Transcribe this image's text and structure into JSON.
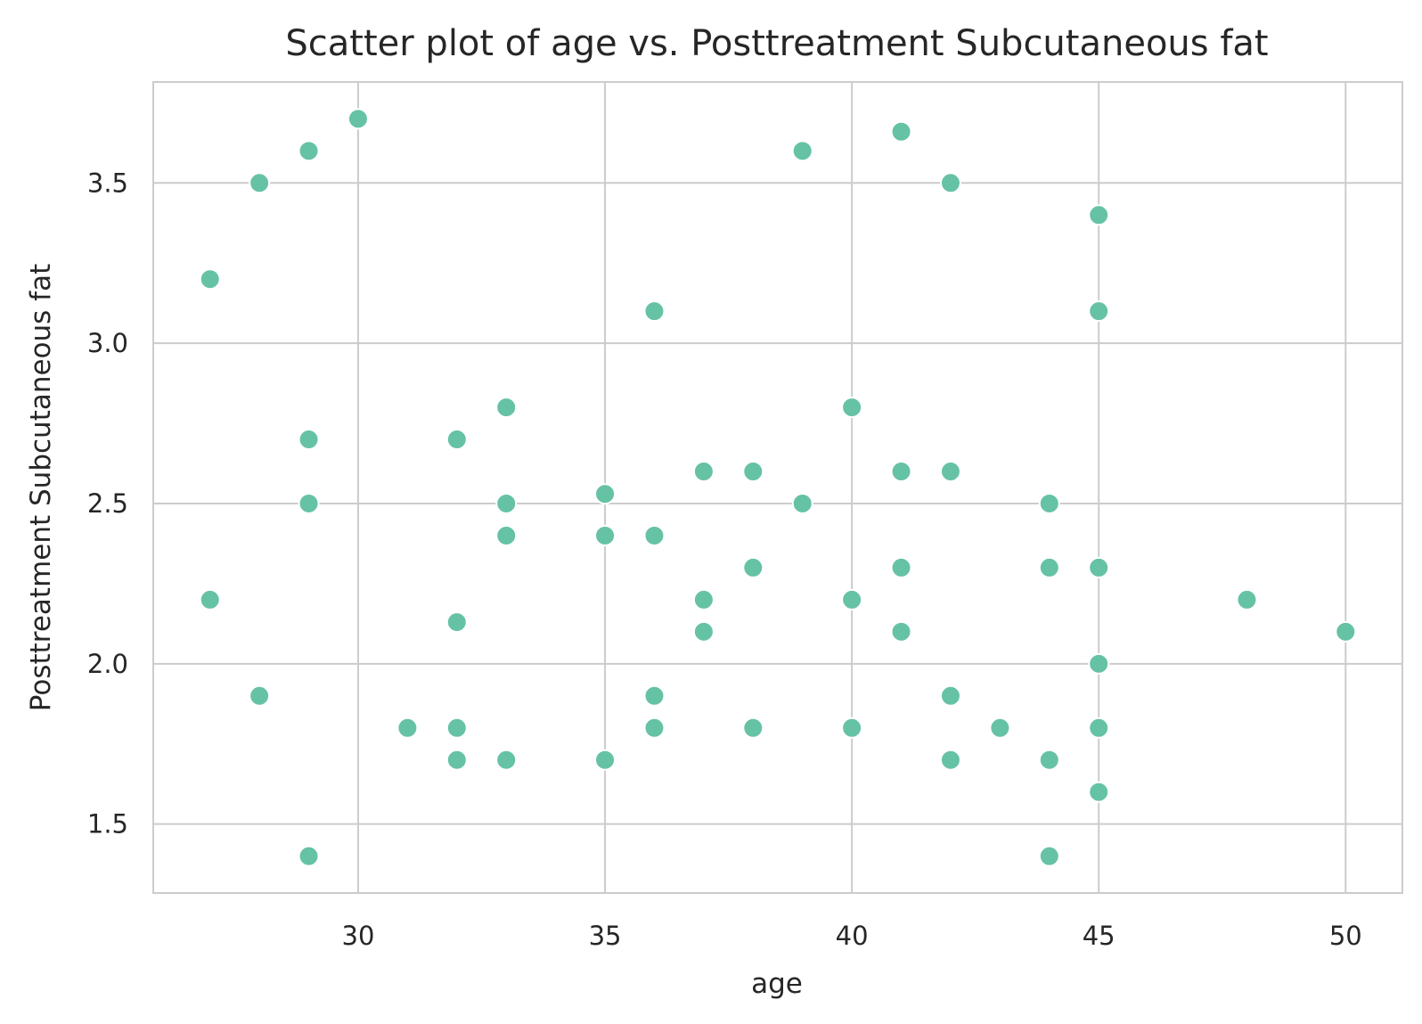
{
  "colors": {
    "point": "#66c2a5",
    "grid": "#cccccc",
    "text": "#262626"
  },
  "chart_data": {
    "type": "scatter",
    "title": "Scatter plot of age vs. Posttreatment Subcutaneous fat",
    "xlabel": "age",
    "ylabel": "Posttreatment Subcutaneous fat",
    "xlim": [
      25.85,
      51.15
    ],
    "ylim": [
      1.285,
      3.815
    ],
    "xticks": [
      30,
      35,
      40,
      45,
      50
    ],
    "xtick_labels": [
      "30",
      "35",
      "40",
      "45",
      "50"
    ],
    "yticks": [
      1.5,
      2.0,
      2.5,
      3.0,
      3.5
    ],
    "ytick_labels": [
      "1.5",
      "2.0",
      "2.5",
      "3.0",
      "3.5"
    ],
    "grid": true,
    "points": [
      {
        "x": 27,
        "y": 3.2
      },
      {
        "x": 27,
        "y": 2.2
      },
      {
        "x": 28,
        "y": 3.5
      },
      {
        "x": 28,
        "y": 1.9
      },
      {
        "x": 29,
        "y": 3.6
      },
      {
        "x": 29,
        "y": 2.7
      },
      {
        "x": 29,
        "y": 2.5
      },
      {
        "x": 29,
        "y": 1.4
      },
      {
        "x": 30,
        "y": 3.7
      },
      {
        "x": 31,
        "y": 1.8
      },
      {
        "x": 32,
        "y": 2.7
      },
      {
        "x": 32,
        "y": 2.13
      },
      {
        "x": 32,
        "y": 1.8
      },
      {
        "x": 32,
        "y": 1.7
      },
      {
        "x": 33,
        "y": 2.8
      },
      {
        "x": 33,
        "y": 2.5
      },
      {
        "x": 33,
        "y": 2.4
      },
      {
        "x": 33,
        "y": 1.7
      },
      {
        "x": 35,
        "y": 2.53
      },
      {
        "x": 35,
        "y": 2.4
      },
      {
        "x": 35,
        "y": 1.7
      },
      {
        "x": 36,
        "y": 3.1
      },
      {
        "x": 36,
        "y": 2.4
      },
      {
        "x": 36,
        "y": 1.9
      },
      {
        "x": 36,
        "y": 1.8
      },
      {
        "x": 37,
        "y": 2.6
      },
      {
        "x": 37,
        "y": 2.2
      },
      {
        "x": 37,
        "y": 2.1
      },
      {
        "x": 38,
        "y": 2.6
      },
      {
        "x": 38,
        "y": 2.3
      },
      {
        "x": 38,
        "y": 1.8
      },
      {
        "x": 39,
        "y": 3.6
      },
      {
        "x": 39,
        "y": 2.5
      },
      {
        "x": 40,
        "y": 2.8
      },
      {
        "x": 40,
        "y": 2.2
      },
      {
        "x": 40,
        "y": 1.8
      },
      {
        "x": 41,
        "y": 3.66
      },
      {
        "x": 41,
        "y": 2.6
      },
      {
        "x": 41,
        "y": 2.3
      },
      {
        "x": 41,
        "y": 2.1
      },
      {
        "x": 42,
        "y": 3.5
      },
      {
        "x": 42,
        "y": 2.6
      },
      {
        "x": 42,
        "y": 1.9
      },
      {
        "x": 42,
        "y": 1.7
      },
      {
        "x": 43,
        "y": 1.8
      },
      {
        "x": 44,
        "y": 2.5
      },
      {
        "x": 44,
        "y": 2.3
      },
      {
        "x": 44,
        "y": 1.7
      },
      {
        "x": 44,
        "y": 1.4
      },
      {
        "x": 45,
        "y": 3.4
      },
      {
        "x": 45,
        "y": 3.1
      },
      {
        "x": 45,
        "y": 2.3
      },
      {
        "x": 45,
        "y": 2.0
      },
      {
        "x": 45,
        "y": 1.8
      },
      {
        "x": 45,
        "y": 1.6
      },
      {
        "x": 48,
        "y": 2.2
      },
      {
        "x": 50,
        "y": 2.1
      }
    ]
  }
}
